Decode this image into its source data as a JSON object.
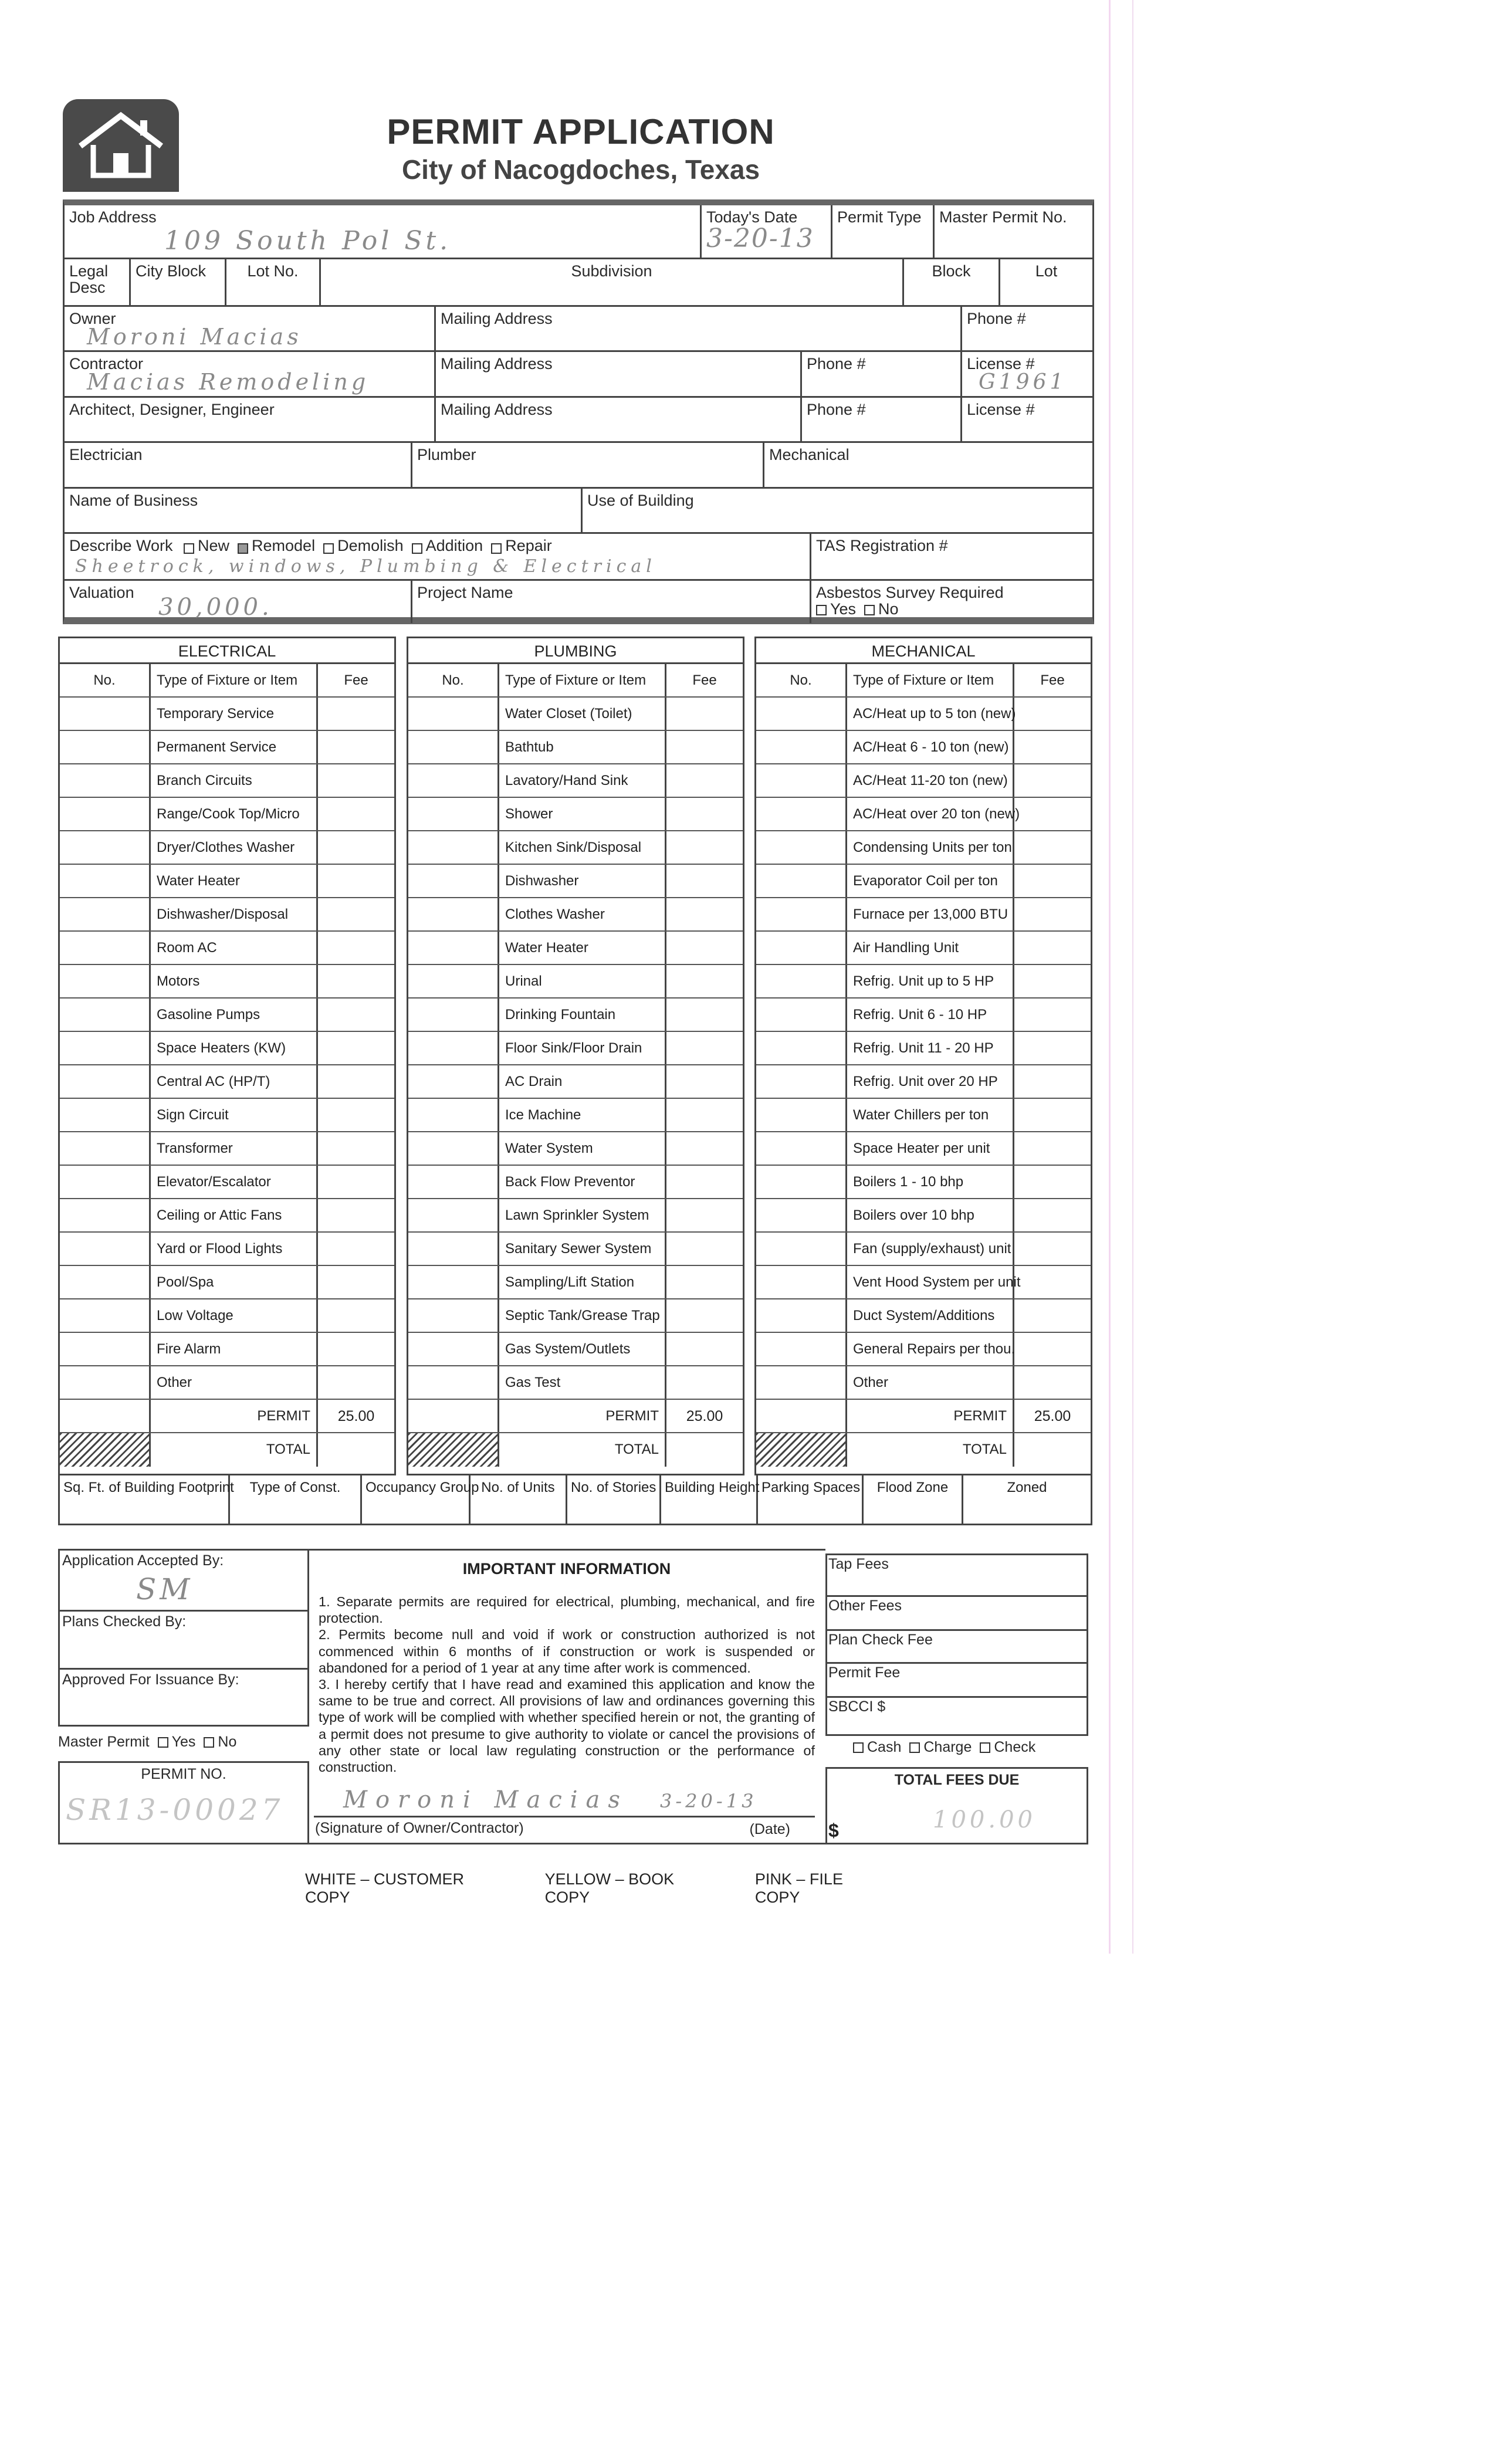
{
  "header": {
    "title": "PERMIT APPLICATION",
    "subtitle": "City of Nacogdoches, Texas",
    "logo": "house-icon"
  },
  "form": {
    "job_address": {
      "label": "Job Address",
      "value": "109 South Pol St."
    },
    "todays_date": {
      "label": "Today's Date",
      "value": "3-20-13"
    },
    "permit_type": {
      "label": "Permit Type"
    },
    "master_permit_no": {
      "label": "Master Permit No."
    },
    "legal_desc": {
      "label": "Legal Desc"
    },
    "city_block": {
      "label": "City Block"
    },
    "lot_no": {
      "label": "Lot No."
    },
    "subdivision": {
      "label": "Subdivision"
    },
    "block": {
      "label": "Block"
    },
    "lot": {
      "label": "Lot"
    },
    "owner": {
      "label": "Owner",
      "value": "Moroni Macias",
      "mailing": "Mailing Address",
      "phone": "Phone #"
    },
    "contractor": {
      "label": "Contractor",
      "value": "Macias Remodeling",
      "mailing": "Mailing Address",
      "phone": "Phone #",
      "license": "License #",
      "license_value": "G1961"
    },
    "architect": {
      "label": "Architect, Designer, Engineer",
      "mailing": "Mailing Address",
      "phone": "Phone #",
      "license": "License #"
    },
    "electrician": {
      "label": "Electrician"
    },
    "plumber": {
      "label": "Plumber"
    },
    "mechanical": {
      "label": "Mechanical"
    },
    "business": {
      "label": "Name of Business"
    },
    "use_of_building": {
      "label": "Use of Building"
    },
    "describe_work": {
      "label": "Describe Work",
      "options": [
        "New",
        "Remodel",
        "Demolish",
        "Addition",
        "Repair"
      ],
      "checked": "Remodel",
      "value": "Sheetrock, windows, Plumbing & Electrical"
    },
    "tas": {
      "label": "TAS Registration #"
    },
    "valuation": {
      "label": "Valuation",
      "value": "30,000."
    },
    "project_name": {
      "label": "Project Name"
    },
    "asbestos": {
      "label": "Asbestos Survey Required",
      "yes": "Yes",
      "no": "No"
    }
  },
  "tables": [
    {
      "title": "ELECTRICAL",
      "headers": [
        "No.",
        "Type of Fixture or Item",
        "Fee"
      ],
      "items": [
        "Temporary Service",
        "Permanent Service",
        "Branch Circuits",
        "Range/Cook Top/Micro",
        "Dryer/Clothes Washer",
        "Water Heater",
        "Dishwasher/Disposal",
        "Room AC",
        "Motors",
        "Gasoline Pumps",
        "Space Heaters (KW)",
        "Central AC (HP/T)",
        "Sign Circuit",
        "Transformer",
        "Elevator/Escalator",
        "Ceiling or Attic Fans",
        "Yard or Flood Lights",
        "Pool/Spa",
        "Low Voltage",
        "Fire Alarm",
        "Other"
      ],
      "permit_label": "PERMIT",
      "permit_fee": "25.00",
      "total_label": "TOTAL"
    },
    {
      "title": "PLUMBING",
      "headers": [
        "No.",
        "Type of Fixture or Item",
        "Fee"
      ],
      "items": [
        "Water Closet (Toilet)",
        "Bathtub",
        "Lavatory/Hand Sink",
        "Shower",
        "Kitchen Sink/Disposal",
        "Dishwasher",
        "Clothes Washer",
        "Water Heater",
        "Urinal",
        "Drinking Fountain",
        "Floor Sink/Floor Drain",
        "AC Drain",
        "Ice Machine",
        "Water System",
        "Back Flow Preventor",
        "Lawn Sprinkler System",
        "Sanitary Sewer System",
        "Sampling/Lift Station",
        "Septic Tank/Grease Trap",
        "Gas System/Outlets",
        "Gas Test"
      ],
      "permit_label": "PERMIT",
      "permit_fee": "25.00",
      "total_label": "TOTAL"
    },
    {
      "title": "MECHANICAL",
      "headers": [
        "No.",
        "Type of Fixture or Item",
        "Fee"
      ],
      "items": [
        "AC/Heat up to 5 ton (new)",
        "AC/Heat 6 - 10 ton (new)",
        "AC/Heat 11-20 ton (new)",
        "AC/Heat over 20 ton (new)",
        "Condensing Units per ton",
        "Evaporator Coil per ton",
        "Furnace per 13,000 BTU",
        "Air Handling Unit",
        "Refrig. Unit up to 5 HP",
        "Refrig. Unit 6 - 10 HP",
        "Refrig. Unit 11 - 20 HP",
        "Refrig. Unit over 20 HP",
        "Water Chillers per ton",
        "Space Heater per unit",
        "Boilers 1 - 10 bhp",
        "Boilers over 10 bhp",
        "Fan (supply/exhaust) unit",
        "Vent Hood System per unit",
        "Duct System/Additions",
        "General Repairs per thou.",
        "Other"
      ],
      "permit_label": "PERMIT",
      "permit_fee": "25.00",
      "total_label": "TOTAL"
    }
  ],
  "building_info": [
    "Sq. Ft. of Building Footprint",
    "Type of Const.",
    "Occupancy Group",
    "No. of Units",
    "No. of Stories",
    "Building Height",
    "Parking Spaces",
    "Flood Zone",
    "Zoned"
  ],
  "office": {
    "accepted_by": "Application Accepted By:",
    "accepted_sig": "SM",
    "plans_checked": "Plans Checked By:",
    "approved": "Approved For Issuance By:",
    "master_permit": "Master Permit",
    "yes": "Yes",
    "no": "No",
    "permit_no_label": "PERMIT NO.",
    "permit_no_value": "SR13-00027"
  },
  "important": {
    "title": "IMPORTANT INFORMATION",
    "items": [
      "1.  Separate permits are required for electrical, plumbing, mechanical, and fire protection.",
      "2. Permits become null and void if work or construction authorized is not commenced within 6 months of if construction or work is suspended or abandoned for a period of 1 year at any time after work is commenced.",
      "3. I hereby certify that I have read and examined this application and know the same to be true and correct.  All provisions of law and ordinances governing this type of work will be complied with whether specified herein or not, the granting of a permit does not presume to give authority to violate or cancel the provisions of any other state or local law regulating construction or the performance of construction."
    ],
    "signature": "Moroni Macias",
    "sig_date": "3-20-13",
    "sig_label": "(Signature of Owner/Contractor)",
    "date_label": "(Date)"
  },
  "fees": {
    "tap": "Tap Fees",
    "other": "Other Fees",
    "plan_check": "Plan Check Fee",
    "permit": "Permit Fee",
    "sbcci": "SBCCI $",
    "payment": [
      "Cash",
      "Charge",
      "Check"
    ],
    "total_label": "TOTAL FEES DUE",
    "currency": "$",
    "total_value": "100.00"
  },
  "footer": [
    "WHITE – CUSTOMER COPY",
    "YELLOW – BOOK COPY",
    "PINK – FILE COPY"
  ]
}
